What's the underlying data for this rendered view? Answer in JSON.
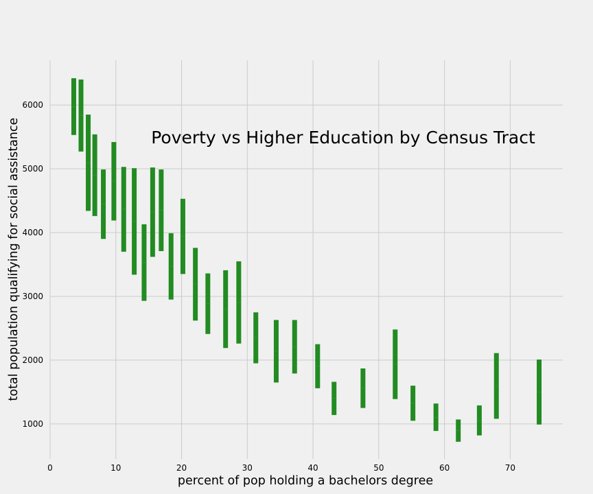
{
  "chart_data": {
    "type": "errorbar",
    "title": "Poverty vs Higher Education by Census Tract",
    "xlabel": "percent of pop holding a bachelors degree",
    "ylabel": "total population qualifying for social assistance",
    "xlim": [
      0,
      78
    ],
    "ylim": [
      450,
      6700
    ],
    "xticks": [
      0,
      10,
      20,
      30,
      40,
      50,
      60,
      70
    ],
    "yticks": [
      1000,
      2000,
      3000,
      4000,
      5000,
      6000
    ],
    "grid": true,
    "bar_color": "#228b22",
    "background": "#f0f0f0",
    "series": [
      {
        "points": [
          {
            "x": 3.6,
            "low": 5530,
            "high": 6420
          },
          {
            "x": 4.7,
            "low": 5270,
            "high": 6400
          },
          {
            "x": 5.8,
            "low": 4340,
            "high": 5850
          },
          {
            "x": 6.8,
            "low": 4260,
            "high": 5540
          },
          {
            "x": 8.1,
            "low": 3900,
            "high": 4990
          },
          {
            "x": 9.7,
            "low": 4190,
            "high": 5420
          },
          {
            "x": 11.2,
            "low": 3700,
            "high": 5030
          },
          {
            "x": 12.8,
            "low": 3340,
            "high": 5010
          },
          {
            "x": 14.3,
            "low": 2930,
            "high": 4130
          },
          {
            "x": 15.6,
            "low": 3620,
            "high": 5020
          },
          {
            "x": 16.9,
            "low": 3710,
            "high": 4990
          },
          {
            "x": 18.4,
            "low": 2950,
            "high": 3990
          },
          {
            "x": 20.2,
            "low": 3350,
            "high": 4530
          },
          {
            "x": 22.1,
            "low": 2620,
            "high": 3760
          },
          {
            "x": 24.0,
            "low": 2410,
            "high": 3360
          },
          {
            "x": 26.7,
            "low": 2190,
            "high": 3410
          },
          {
            "x": 28.7,
            "low": 2260,
            "high": 3550
          },
          {
            "x": 31.3,
            "low": 1950,
            "high": 2750
          },
          {
            "x": 34.4,
            "low": 1650,
            "high": 2630
          },
          {
            "x": 37.2,
            "low": 1790,
            "high": 2630
          },
          {
            "x": 40.7,
            "low": 1560,
            "high": 2250
          },
          {
            "x": 43.2,
            "low": 1140,
            "high": 1660
          },
          {
            "x": 47.6,
            "low": 1250,
            "high": 1870
          },
          {
            "x": 52.5,
            "low": 1390,
            "high": 2480
          },
          {
            "x": 55.2,
            "low": 1050,
            "high": 1600
          },
          {
            "x": 58.7,
            "low": 890,
            "high": 1320
          },
          {
            "x": 62.1,
            "low": 720,
            "high": 1070
          },
          {
            "x": 65.3,
            "low": 820,
            "high": 1290
          },
          {
            "x": 67.9,
            "low": 1080,
            "high": 2110
          },
          {
            "x": 74.4,
            "low": 990,
            "high": 2010
          }
        ]
      }
    ]
  }
}
